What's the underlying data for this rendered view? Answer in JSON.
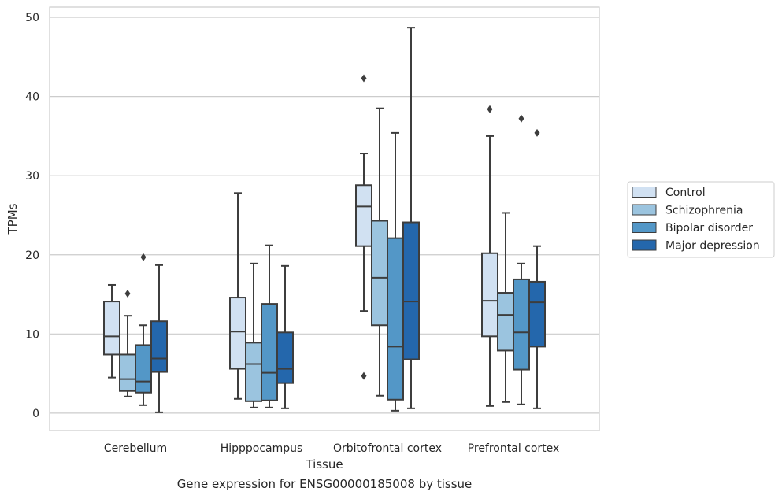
{
  "caption": "Gene expression for ENSG00000185008 by tissue",
  "chart_data": {
    "type": "box",
    "xlabel": "Tissue",
    "ylabel": "TPMs",
    "ylim": [
      -2.2,
      51.3
    ],
    "yticks": [
      0,
      10,
      20,
      30,
      40,
      50
    ],
    "grid": "horizontal",
    "legend_position": "right",
    "categories": [
      "Cerebellum",
      "Hipppocampus",
      "Orbitofrontal cortex",
      "Prefrontal cortex"
    ],
    "series": [
      {
        "name": "Control",
        "color": "#d1e1f2",
        "boxes": [
          {
            "whislo": 4.5,
            "q1": 7.4,
            "med": 9.7,
            "q3": 14.1,
            "whishi": 16.2,
            "fliers": []
          },
          {
            "whislo": 1.8,
            "q1": 5.6,
            "med": 10.3,
            "q3": 14.6,
            "whishi": 27.8,
            "fliers": []
          },
          {
            "whislo": 12.9,
            "q1": 21.1,
            "med": 26.1,
            "q3": 28.8,
            "whishi": 32.8,
            "fliers": [
              42.3,
              4.7
            ]
          },
          {
            "whislo": 0.9,
            "q1": 9.7,
            "med": 14.2,
            "q3": 20.2,
            "whishi": 35.0,
            "fliers": [
              38.4
            ]
          }
        ]
      },
      {
        "name": "Schizophrenia",
        "color": "#9bc4df",
        "boxes": [
          {
            "whislo": 2.1,
            "q1": 2.8,
            "med": 4.3,
            "q3": 7.4,
            "whishi": 12.3,
            "fliers": [
              15.1
            ]
          },
          {
            "whislo": 0.7,
            "q1": 1.5,
            "med": 6.2,
            "q3": 8.9,
            "whishi": 18.9,
            "fliers": []
          },
          {
            "whislo": 2.2,
            "q1": 11.1,
            "med": 17.1,
            "q3": 24.3,
            "whishi": 38.5,
            "fliers": []
          },
          {
            "whislo": 1.4,
            "q1": 7.9,
            "med": 12.4,
            "q3": 15.2,
            "whishi": 25.3,
            "fliers": []
          }
        ]
      },
      {
        "name": "Bipolar disorder",
        "color": "#5397c7",
        "boxes": [
          {
            "whislo": 1.0,
            "q1": 2.6,
            "med": 4.0,
            "q3": 8.6,
            "whishi": 11.1,
            "fliers": [
              19.7
            ]
          },
          {
            "whislo": 0.7,
            "q1": 1.6,
            "med": 5.1,
            "q3": 13.8,
            "whishi": 21.2,
            "fliers": []
          },
          {
            "whislo": 0.3,
            "q1": 1.7,
            "med": 8.4,
            "q3": 22.1,
            "whishi": 35.4,
            "fliers": []
          },
          {
            "whislo": 1.1,
            "q1": 5.5,
            "med": 10.2,
            "q3": 16.9,
            "whishi": 18.9,
            "fliers": [
              37.2
            ]
          }
        ]
      },
      {
        "name": "Major depression",
        "color": "#2467ac",
        "boxes": [
          {
            "whislo": 0.1,
            "q1": 5.2,
            "med": 6.9,
            "q3": 11.6,
            "whishi": 18.7,
            "fliers": []
          },
          {
            "whislo": 0.6,
            "q1": 3.8,
            "med": 5.6,
            "q3": 10.2,
            "whishi": 18.6,
            "fliers": []
          },
          {
            "whislo": 0.6,
            "q1": 6.8,
            "med": 14.1,
            "q3": 24.1,
            "whishi": 48.7,
            "fliers": []
          },
          {
            "whislo": 0.6,
            "q1": 8.4,
            "med": 14.0,
            "q3": 16.6,
            "whishi": 21.1,
            "fliers": [
              35.4
            ]
          }
        ]
      }
    ]
  }
}
